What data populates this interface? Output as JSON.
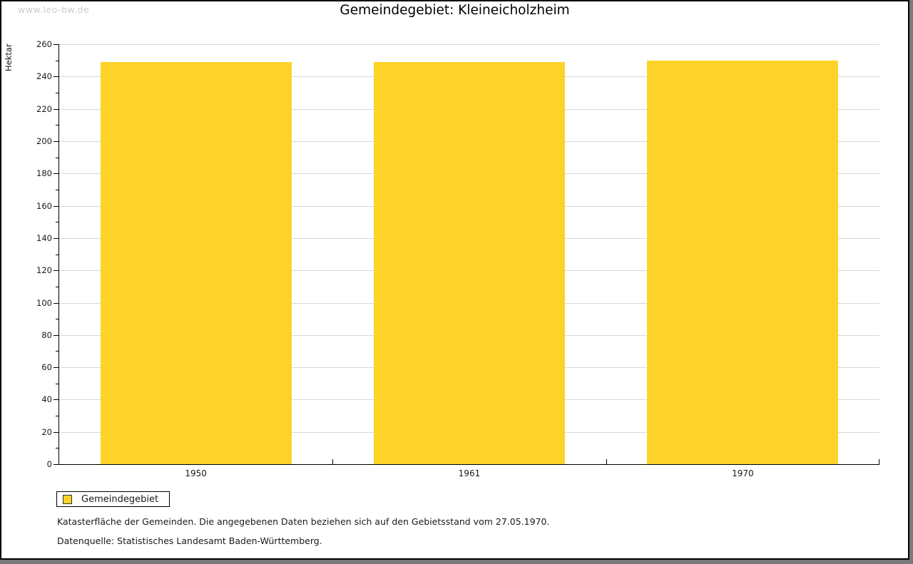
{
  "watermark": "www.leo-bw.de",
  "title": "Gemeindegebiet: Kleineicholzheim",
  "legend": {
    "label": "Gemeindegebiet",
    "swatch_color": "#fdd32a",
    "swatch_border": "#333333"
  },
  "notes": {
    "line1": "Katasterfläche der Gemeinden. Die angegebenen Daten beziehen sich auf den Gebietsstand vom 27.05.1970.",
    "line2": "Datenquelle: Statistisches Landesamt Baden-Württemberg."
  },
  "chart_data": {
    "type": "bar",
    "title": "Gemeindegebiet: Kleineicholzheim",
    "categories": [
      "1950",
      "1961",
      "1970"
    ],
    "series": [
      {
        "name": "Gemeindegebiet",
        "values": [
          249,
          249,
          250
        ],
        "color": "#fdd32a"
      }
    ],
    "xlabel": "",
    "ylabel": "Hektar",
    "ylim": [
      0,
      260
    ],
    "ytick_step": 20,
    "yminor_step": 10,
    "grid": true,
    "legend_position": "bottom-left",
    "unit": "Hektar"
  },
  "colors": {
    "bar": "#fdd32a",
    "grid": "#d7d7d7",
    "axis": "#000000",
    "watermark": "#cccccc",
    "frame_shadow": "#7a7a7a"
  }
}
